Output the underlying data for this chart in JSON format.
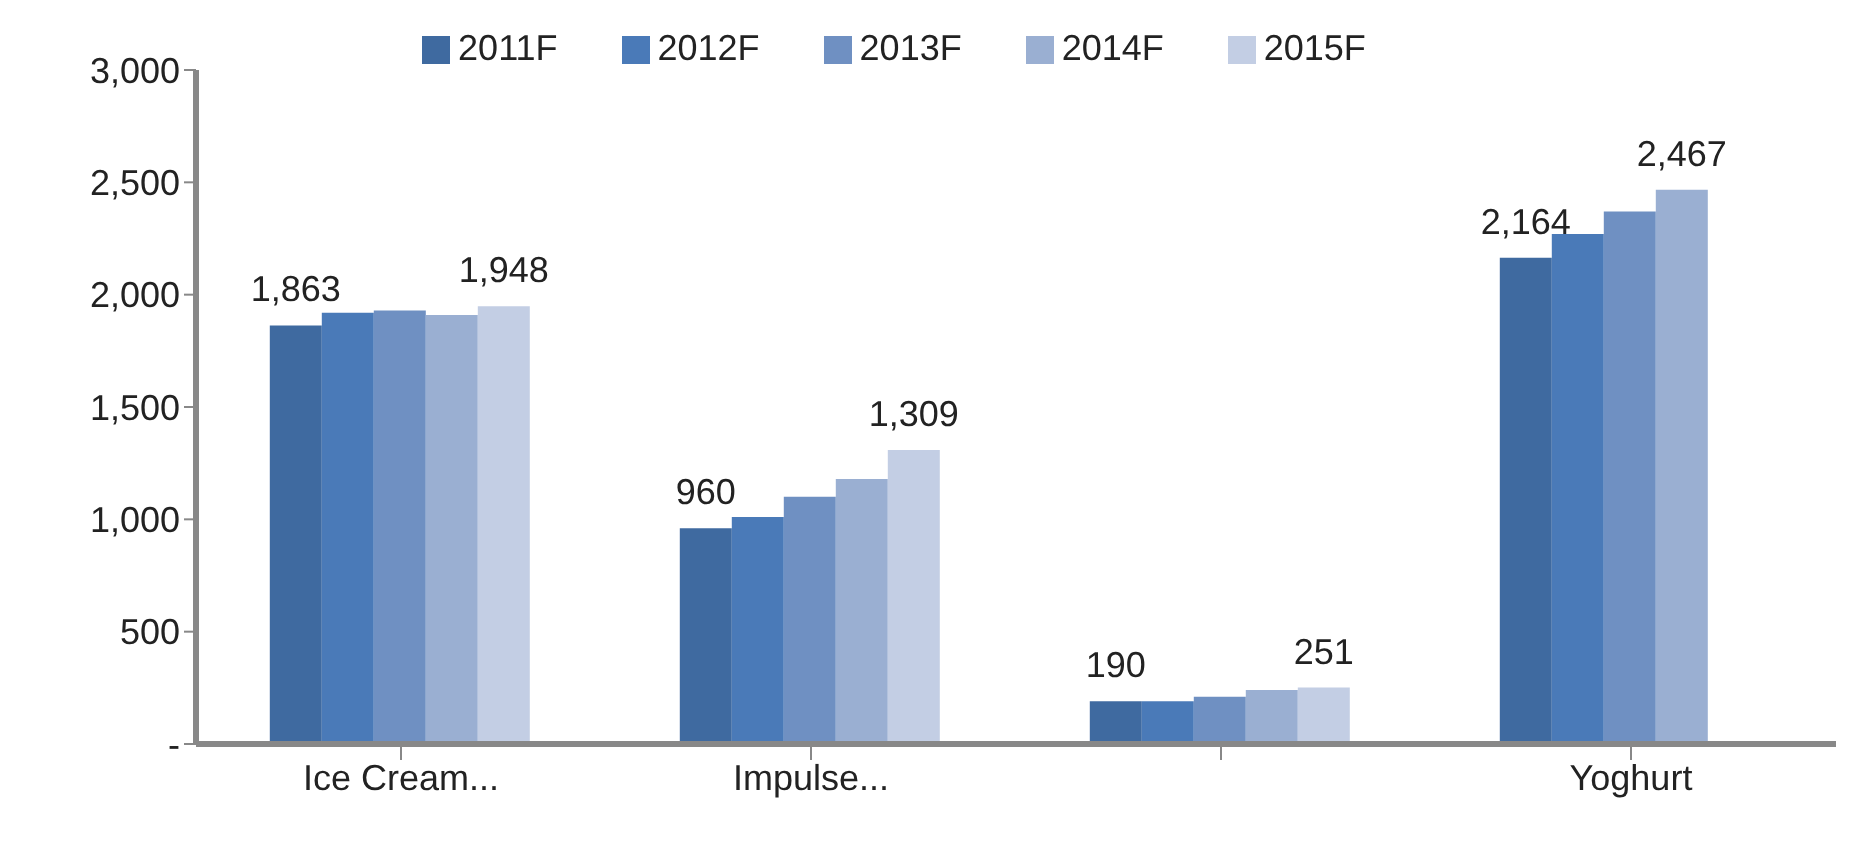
{
  "chart_data": {
    "type": "bar",
    "categories": [
      "Ice Cream...",
      "Impulse...",
      null,
      "Yoghurt"
    ],
    "series": [
      {
        "name": "2011F",
        "color": "#3f6aa0",
        "values": [
          1863,
          960,
          190,
          2164
        ],
        "value_labels": [
          "1,863",
          "960",
          "190",
          "2,164"
        ]
      },
      {
        "name": "2012F",
        "color": "#4a7ab8",
        "values": [
          1920,
          1010,
          190,
          2270
        ]
      },
      {
        "name": "2013F",
        "color": "#6f90c2",
        "values": [
          1930,
          1100,
          210,
          2370
        ]
      },
      {
        "name": "2014F",
        "color": "#9aafd2",
        "values": [
          1910,
          1180,
          240,
          2467
        ],
        "value_labels": [
          null,
          null,
          null,
          "2,467"
        ]
      },
      {
        "name": "2015F",
        "color": "#c3cee4",
        "values": [
          1948,
          1309,
          251,
          null
        ],
        "value_labels": [
          "1,948",
          "1,309",
          "251",
          null
        ]
      }
    ],
    "ylim": [
      0,
      3000
    ],
    "yticks": [
      {
        "value": 0,
        "label": "-"
      },
      {
        "value": 500,
        "label": "500"
      },
      {
        "value": 1000,
        "label": "1,000"
      },
      {
        "value": 1500,
        "label": "1,500"
      },
      {
        "value": 2000,
        "label": "2,000"
      },
      {
        "value": 2500,
        "label": "2,500"
      },
      {
        "value": 3000,
        "label": "3,000"
      }
    ],
    "grid": false,
    "legend": "top"
  }
}
